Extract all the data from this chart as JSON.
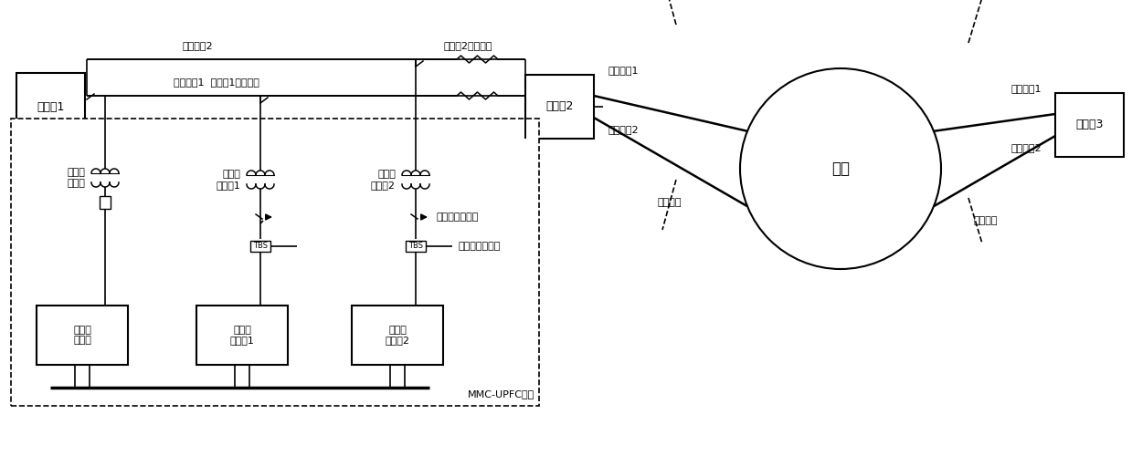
{
  "bg_color": "#ffffff",
  "labels": {
    "station1": "变电站1",
    "station2": "变电站2",
    "station3": "变电站3",
    "load": "负荷",
    "shunt_transformer": "并联侧\n变压器",
    "series_transformer1": "串联侧\n变压器1",
    "series_transformer2": "串联侧\n变压器2",
    "shunt_converter": "并联侧\n换流器",
    "series_converter1": "串联侧\n换流器1",
    "series_converter2": "串联侧\n换流器2",
    "line2_label": "受控线路2",
    "line1_label": "受控线路1  串联侧1旁路开关",
    "bypass2_label": "串联侧2旁路开关",
    "lv_bypass": "低压侧旁路开关",
    "thyristor_bypass": "晶闸管旁路开关",
    "near_section": "近端断面",
    "far_section": "远端断面",
    "trans_line1_left": "传输线路1",
    "trans_line2_left": "传输线路2",
    "trans_line1_right": "传输线路1",
    "trans_line2_right": "传输线路2",
    "mmc": "MMC-UPFC系统"
  }
}
